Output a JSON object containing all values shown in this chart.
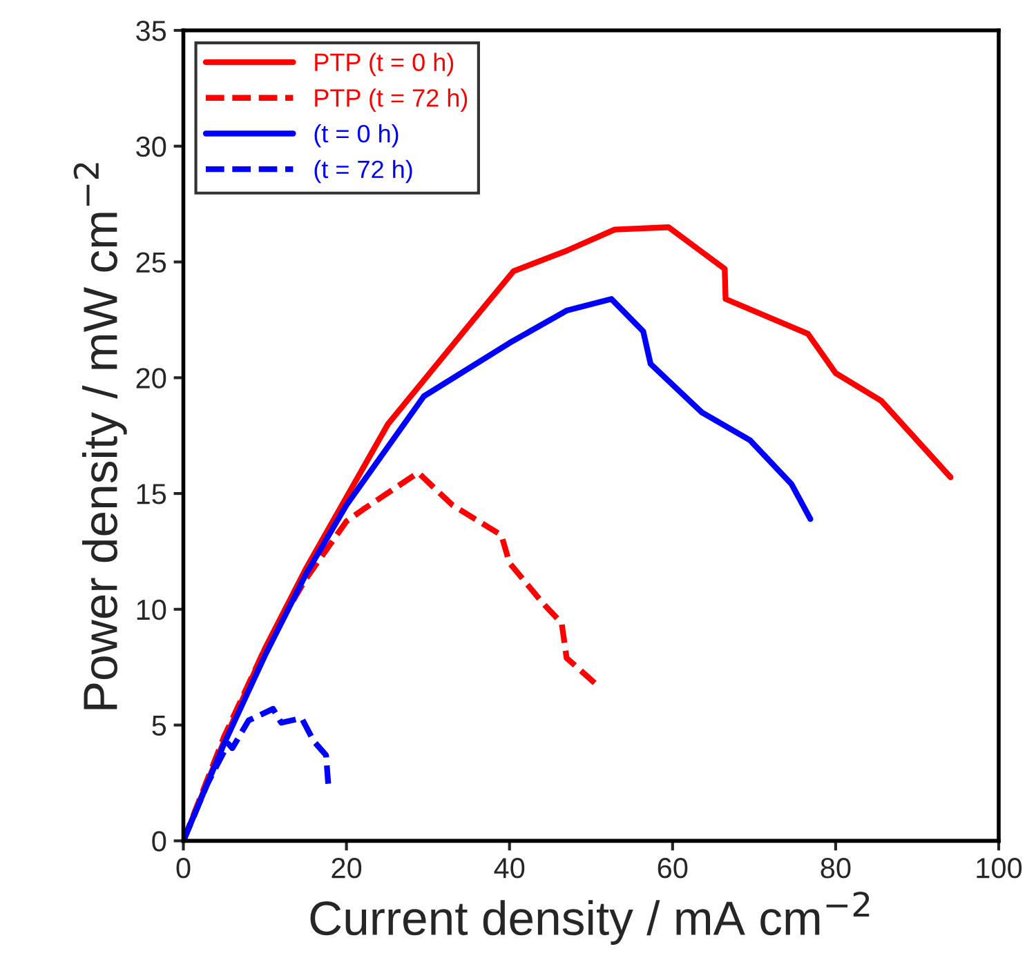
{
  "chart_data": {
    "type": "line",
    "xlabel": "Current density / mA cm$^{−2}$",
    "ylabel": "Power density / mW cm$^{−2}$",
    "xlim": [
      0,
      100
    ],
    "ylim": [
      0,
      35
    ],
    "xticks": [
      0,
      20,
      40,
      60,
      80,
      100
    ],
    "yticks": [
      0,
      5,
      10,
      15,
      20,
      25,
      30,
      35
    ],
    "grid": false,
    "legend": "top left",
    "marker": "none",
    "series": [
      {
        "name": "PTP (t = 0 h)",
        "color": "#ff0000",
        "line_style": "solid",
        "x": [
          0,
          5,
          10,
          15.1,
          25.1,
          35.1,
          40.5,
          47.1,
          52.9,
          59.5,
          66.4,
          66.5,
          76.6,
          80,
          85.6,
          94.1
        ],
        "values": [
          0,
          4.3,
          8.3,
          11.8,
          18.0,
          22.3,
          24.6,
          25.5,
          26.4,
          26.5,
          24.7,
          23.4,
          21.9,
          20.2,
          19.0,
          15.7
        ]
      },
      {
        "name": "PTP (t = 72 h)",
        "color": "#ff0000",
        "line_style": "dashed",
        "x": [
          0,
          5,
          10,
          15,
          20,
          22,
          28.8,
          33,
          39,
          40,
          44,
          46.4,
          47,
          50.5
        ],
        "values": [
          0,
          4.5,
          8.3,
          11.3,
          13.8,
          14.3,
          15.9,
          14.5,
          13.2,
          12.0,
          10.3,
          9.4,
          7.9,
          6.8
        ]
      },
      {
        "name": "(t = 0 h)",
        "color": "#0000ff",
        "line_style": "solid",
        "x": [
          0,
          5,
          10,
          15,
          20,
          29.5,
          40,
          47,
          52.5,
          56.4,
          57.3,
          63.6,
          69.5,
          74.6,
          76.9
        ],
        "values": [
          0,
          4.2,
          8.0,
          11.5,
          14.5,
          19.2,
          21.5,
          22.9,
          23.4,
          22.0,
          20.6,
          18.5,
          17.3,
          15.4,
          13.9
        ]
      },
      {
        "name": "(t = 72 h)",
        "color": "#0000ff",
        "line_style": "dashed",
        "x": [
          0,
          3,
          5.5,
          6,
          8,
          11,
          12,
          14.5,
          16,
          17.5,
          17.8
        ],
        "values": [
          0,
          2.5,
          4.2,
          4.0,
          5.2,
          5.7,
          5.1,
          5.3,
          4.3,
          3.7,
          2.3
        ]
      }
    ]
  }
}
